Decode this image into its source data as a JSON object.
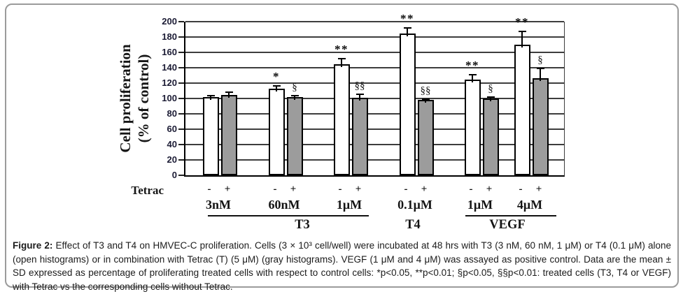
{
  "figure": {
    "caption": {
      "label": "Figure 2:",
      "text": " Effect of T3 and T4 on HMVEC-C proliferation. Cells (3 × 10³ cell/well) were incubated at 48 hrs with T3 (3 nM, 60 nM, 1 μM) or T4 (0.1 μM) alone (open histograms) or in combination with Tetrac (T) (5 μM) (gray histograms). VEGF (1 μM and 4 μM) was assayed as positive control. Data are the mean ± SD expressed as percentage of proliferating treated cells with respect to control cells: *p<0.05, **p<0.01; §p<0.05, §§p<0.01: treated cells (T3, T4 or VEGF) with Tetrac vs the corresponding cells without Tetrac."
    }
  },
  "chart_data": {
    "type": "bar",
    "title": "",
    "ylabel_line1": "Cell proliferation",
    "ylabel_line2": "(% of control)",
    "ylim": [
      0,
      200
    ],
    "ytick_step": 20,
    "grid": true,
    "legend_position": "none",
    "row_label": "Tetrac",
    "series": [
      {
        "name": "without Tetrac (open histogram)",
        "style": "open",
        "fill": "#ffffff",
        "sign": "-"
      },
      {
        "name": "with Tetrac (gray histogram)",
        "style": "gray",
        "fill": "#9c9c9c",
        "sign": "+"
      }
    ],
    "groups": [
      {
        "concentration": "3nM",
        "treatment": "T3",
        "bars": [
          {
            "value": 102,
            "sd": 3,
            "sig": ""
          },
          {
            "value": 105,
            "sd": 4,
            "sig": ""
          }
        ]
      },
      {
        "concentration": "60nM",
        "treatment": "T3",
        "bars": [
          {
            "value": 113,
            "sd": 4,
            "sig": "*"
          },
          {
            "value": 102,
            "sd": 3,
            "sig": "§"
          }
        ]
      },
      {
        "concentration": "1μM",
        "treatment": "T3",
        "bars": [
          {
            "value": 145,
            "sd": 8,
            "sig": "**"
          },
          {
            "value": 101,
            "sd": 5,
            "sig": "§§"
          }
        ]
      },
      {
        "concentration": "0.1μM",
        "treatment": "T4",
        "bars": [
          {
            "value": 185,
            "sd": 8,
            "sig": "**"
          },
          {
            "value": 98,
            "sd": 2,
            "sig": "§§"
          }
        ]
      },
      {
        "concentration": "1μM",
        "treatment": "VEGF",
        "bars": [
          {
            "value": 125,
            "sd": 7,
            "sig": "**"
          },
          {
            "value": 100,
            "sd": 3,
            "sig": "§"
          }
        ]
      },
      {
        "concentration": "4μM",
        "treatment": "VEGF",
        "bars": [
          {
            "value": 170,
            "sd": 18,
            "sig": "**"
          },
          {
            "value": 126,
            "sd": 14,
            "sig": "§"
          }
        ]
      }
    ],
    "treatments": [
      {
        "label": "T3",
        "underline": true
      },
      {
        "label": "T4",
        "underline": false
      },
      {
        "label": "VEGF",
        "underline": true
      }
    ],
    "colors": {
      "open_bar": "#ffffff",
      "gray_bar": "#9c9c9c",
      "bar_outline": "#000000",
      "gridline": "#3d3d3d"
    }
  }
}
